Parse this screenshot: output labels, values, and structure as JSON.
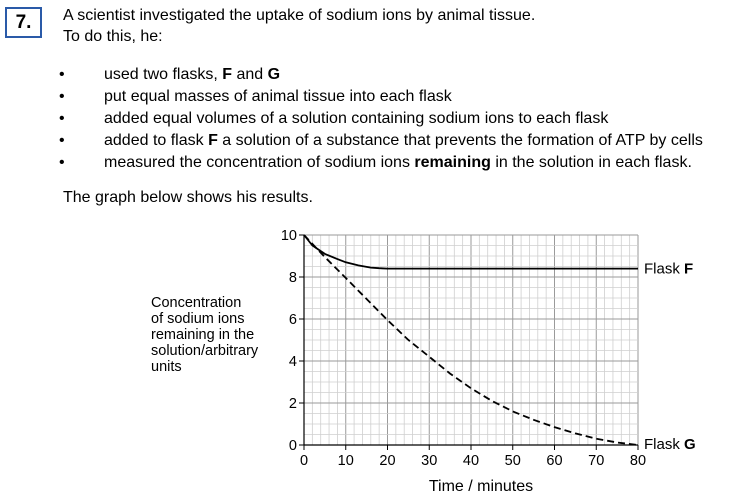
{
  "question": {
    "number": "7.",
    "intro_line1": "A scientist investigated the uptake of sodium ions by animal tissue.",
    "intro_line2": "To do this, he:",
    "bullets": [
      {
        "text": "used two flasks, F and G"
      },
      {
        "text": "put equal masses of animal tissue into each flask"
      },
      {
        "text": "added equal volumes of a solution containing sodium ions to each flask"
      },
      {
        "text": "added to flask F a solution of a substance that prevents the formation of ATP by cells"
      },
      {
        "text": "measured the concentration of sodium ions remaining in the solution in each flask."
      }
    ],
    "graph_intro": "The graph below shows his results."
  },
  "chart_data": {
    "type": "line",
    "xlabel": "Time / minutes",
    "ylabel_lines": [
      "Concentration",
      "of sodium ions",
      "remaining in the",
      "solution/arbitrary",
      "units"
    ],
    "xlim": [
      0,
      80
    ],
    "ylim": [
      0,
      10
    ],
    "x_ticks": [
      0,
      10,
      20,
      30,
      40,
      50,
      60,
      70,
      80
    ],
    "y_ticks": [
      0,
      2,
      4,
      6,
      8,
      10
    ],
    "grid": true,
    "series": [
      {
        "name": "Flask F",
        "style": "solid",
        "x": [
          0,
          2,
          5,
          8,
          10,
          13,
          16,
          18,
          20,
          80
        ],
        "y": [
          10,
          9.5,
          9.1,
          8.85,
          8.7,
          8.55,
          8.45,
          8.42,
          8.4,
          8.4
        ]
      },
      {
        "name": "Flask G",
        "style": "dashed",
        "x": [
          0,
          5,
          10,
          15,
          20,
          25,
          30,
          35,
          40,
          45,
          50,
          55,
          60,
          65,
          70,
          75,
          80
        ],
        "y": [
          10,
          8.95,
          7.95,
          6.95,
          5.95,
          5.0,
          4.2,
          3.4,
          2.7,
          2.1,
          1.6,
          1.2,
          0.85,
          0.55,
          0.3,
          0.12,
          0
        ]
      }
    ]
  }
}
